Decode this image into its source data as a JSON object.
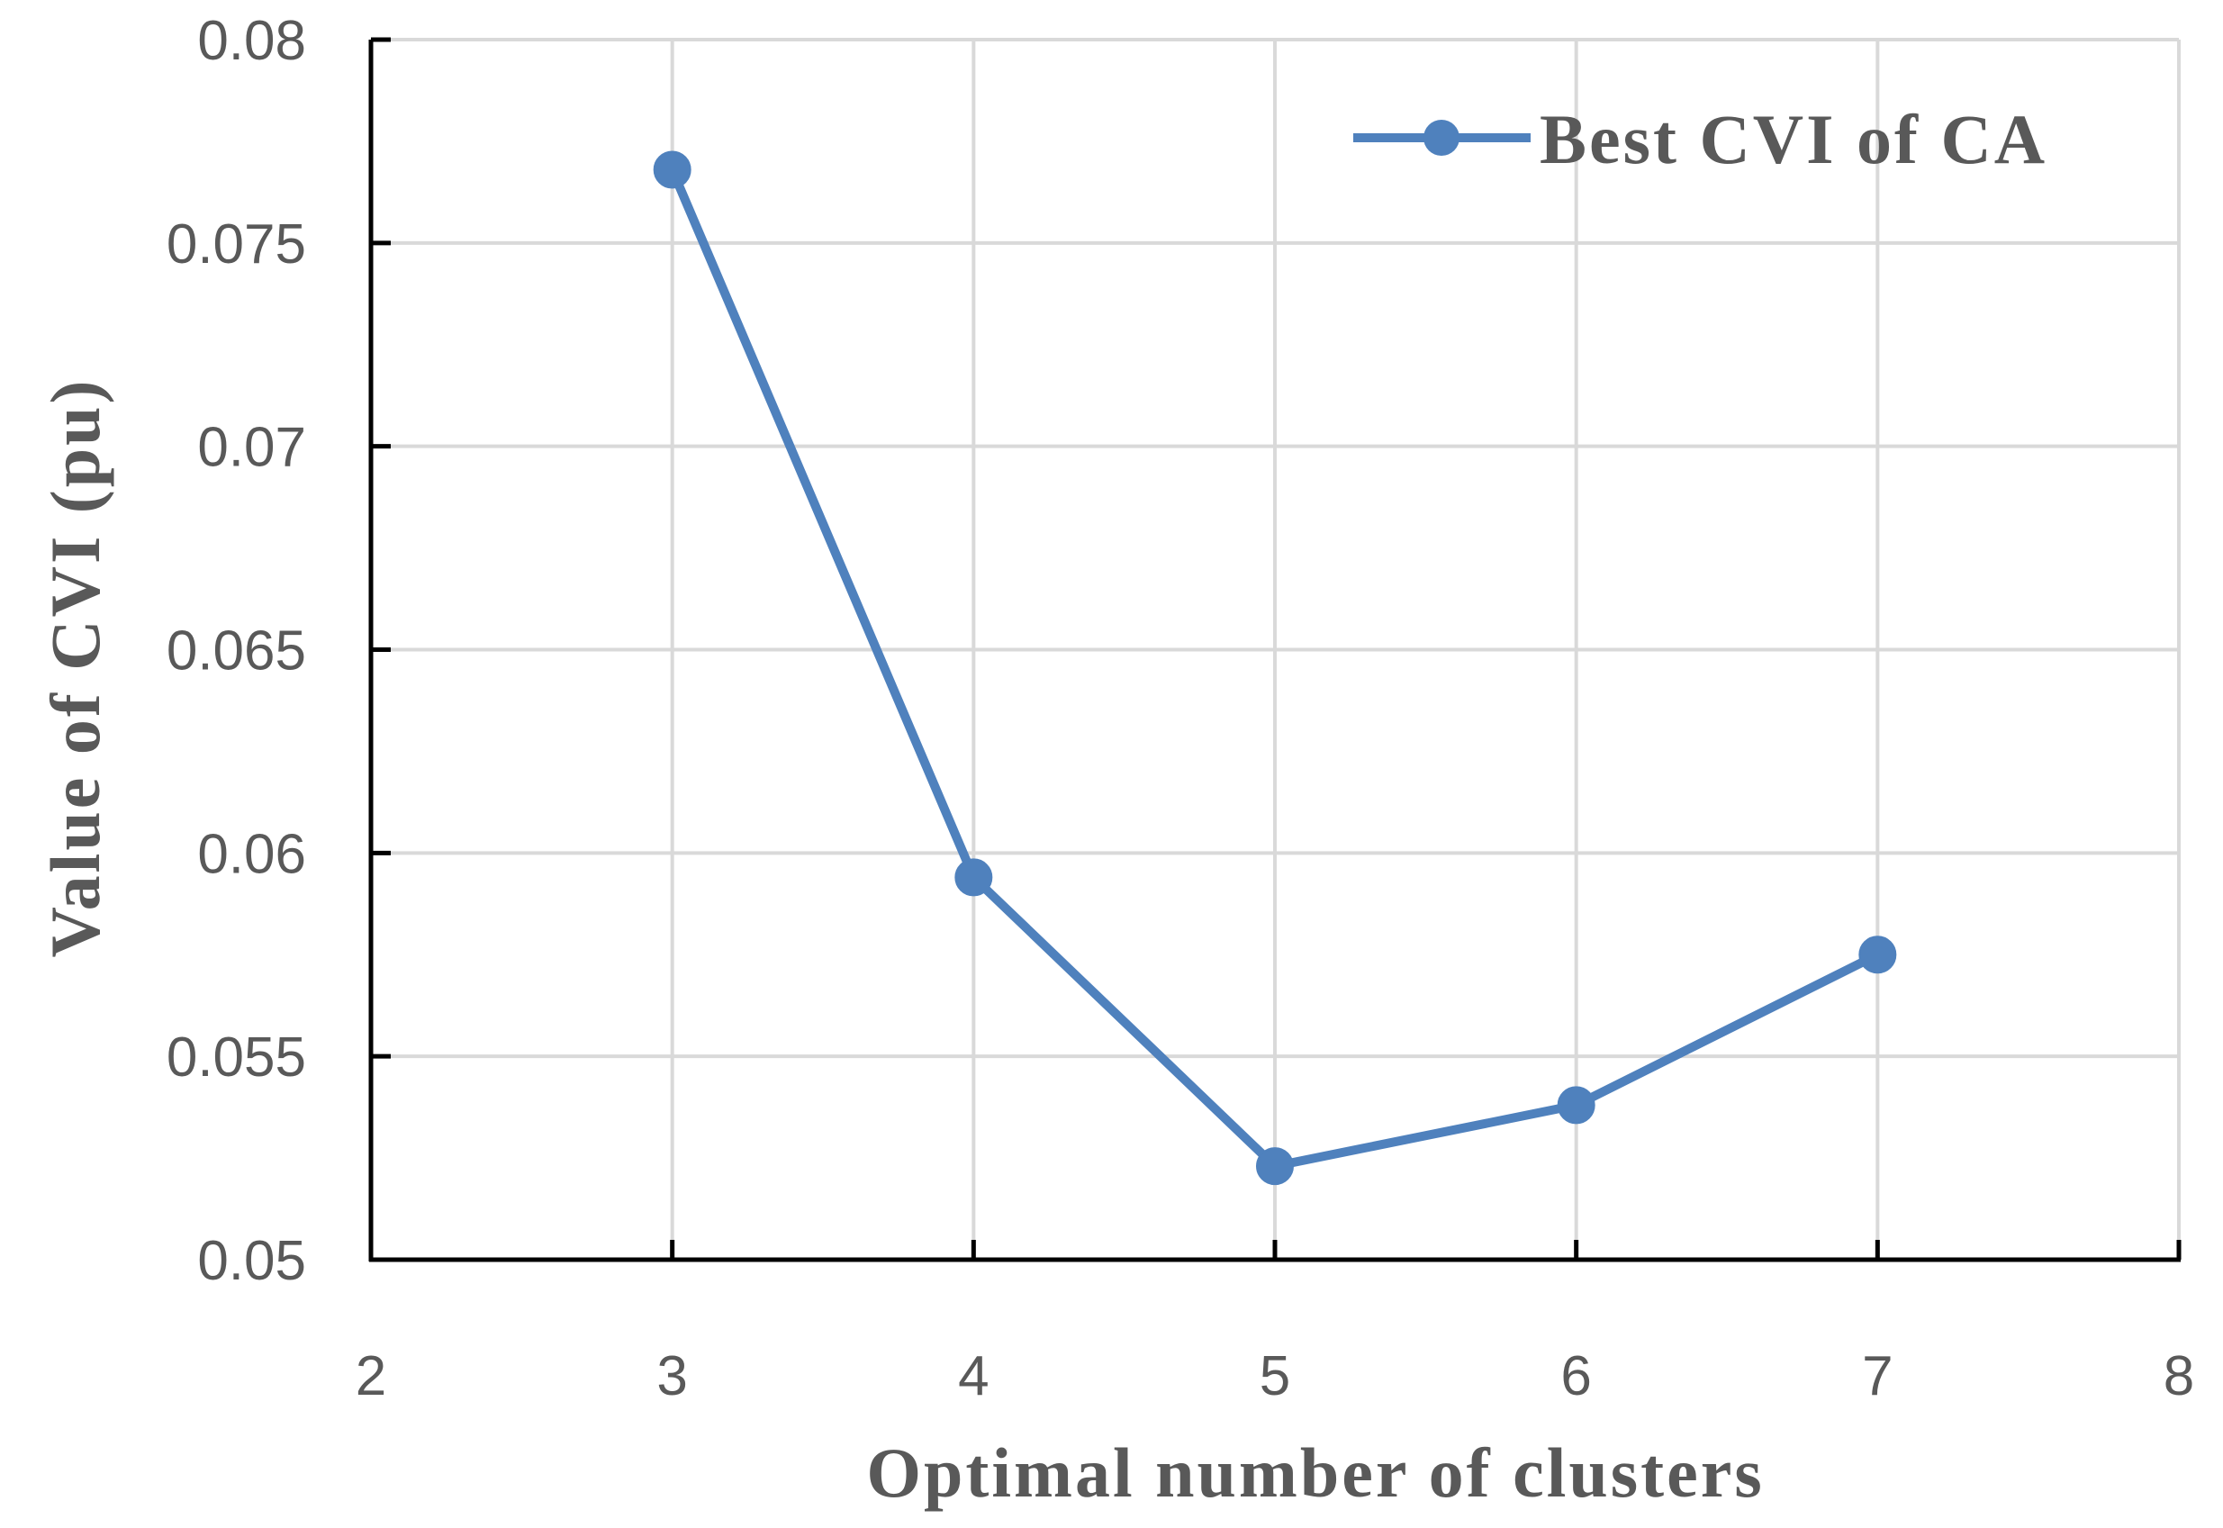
{
  "chart_data": {
    "type": "scatter",
    "xlabel": "Optimal  number  of  clusters",
    "ylabel": "Value  of  CVI  (pu)",
    "xlim": [
      2,
      8
    ],
    "ylim": [
      0.05,
      0.08
    ],
    "x_ticks": [
      "2",
      "3",
      "4",
      "5",
      "6",
      "7",
      "8"
    ],
    "y_ticks": [
      "0.05",
      "0.055",
      "0.06",
      "0.065",
      "0.07",
      "0.075",
      "0.08"
    ],
    "grid": true,
    "legend_position": "top-right",
    "series": [
      {
        "name": "Best CVI of CA",
        "color": "#4f81bd",
        "x": [
          3,
          4,
          5,
          6,
          7
        ],
        "y": [
          0.0768,
          0.0594,
          0.0523,
          0.0538,
          0.0575
        ],
        "line": true,
        "markers": true
      }
    ]
  }
}
